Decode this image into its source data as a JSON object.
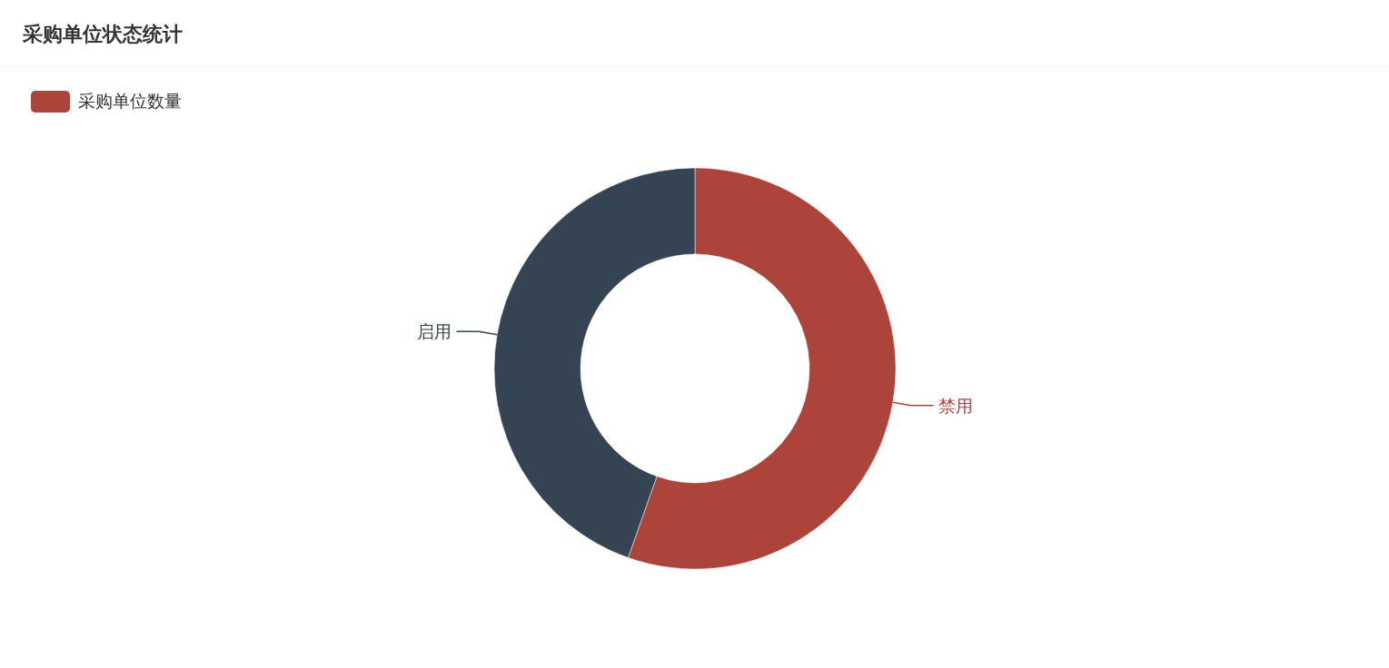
{
  "chart_data": {
    "type": "donut",
    "title": "采购单位状态统计",
    "categories": [
      "禁用",
      "启用"
    ],
    "series": [
      {
        "name": "采购单位数量",
        "color": "#ac443a",
        "values": [
          55.4,
          44.6
        ]
      }
    ],
    "colors": [
      "#ac443a",
      "#354453"
    ],
    "legend": "top left"
  }
}
